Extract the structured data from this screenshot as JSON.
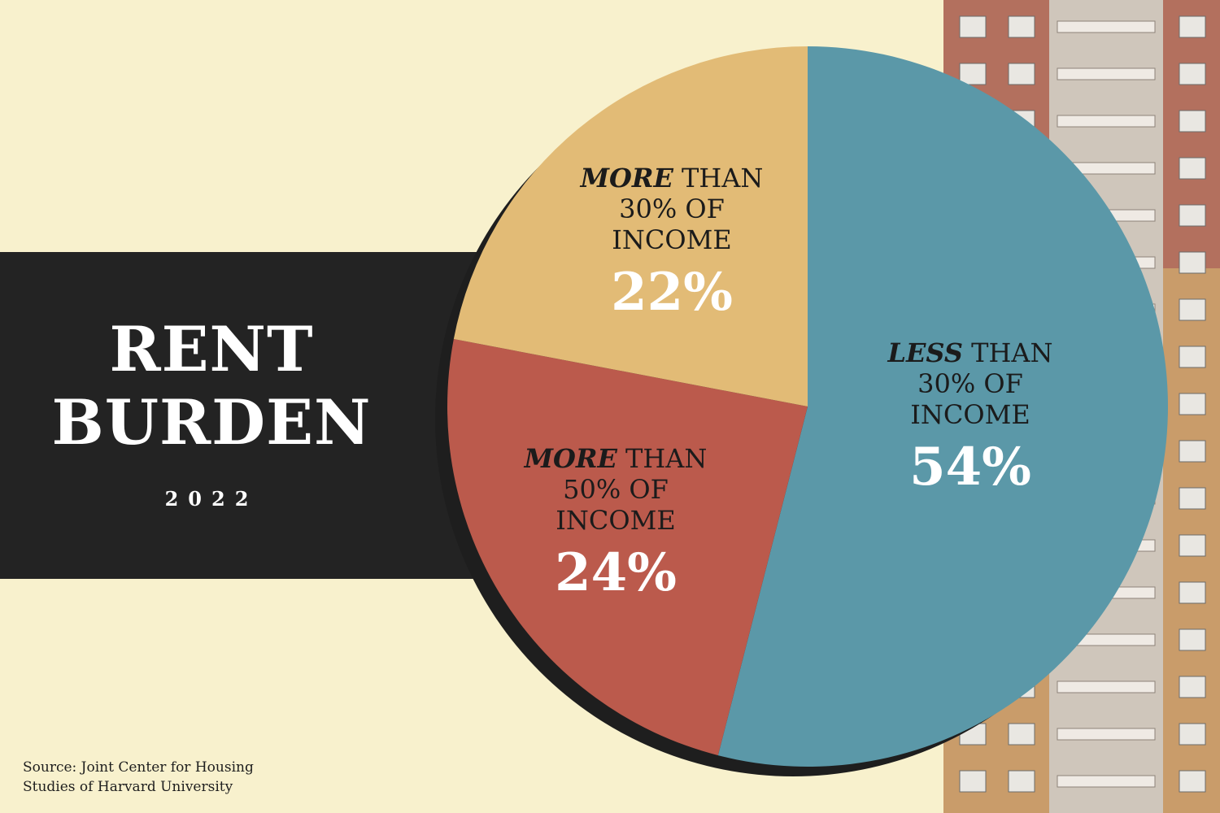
{
  "title_lines": [
    "RENT",
    "BURDEN"
  ],
  "year": "2022",
  "source_lines": [
    "Source: Joint Center for Housing",
    "Studies of Harvard University"
  ],
  "colors": {
    "background": "#f8f1cd",
    "band": "#232323",
    "less_30": "#5b98a8",
    "more_50": "#bb5a4c",
    "more_30": "#e2bb76"
  },
  "chart_data": {
    "type": "pie",
    "title": "RENT BURDEN",
    "subtitle": "2022",
    "slices": [
      {
        "emphasis": "LESS",
        "rest_line1": "THAN",
        "line2": "30% OF",
        "line3": "INCOME",
        "label": "54%",
        "value": 54,
        "color": "#5b98a8"
      },
      {
        "emphasis": "MORE",
        "rest_line1": "THAN",
        "line2": "50% OF",
        "line3": "INCOME",
        "label": "24%",
        "value": 24,
        "color": "#bb5a4c"
      },
      {
        "emphasis": "MORE",
        "rest_line1": "THAN",
        "line2": "30% OF",
        "line3": "INCOME",
        "label": "22%",
        "value": 22,
        "color": "#e2bb76"
      }
    ]
  }
}
